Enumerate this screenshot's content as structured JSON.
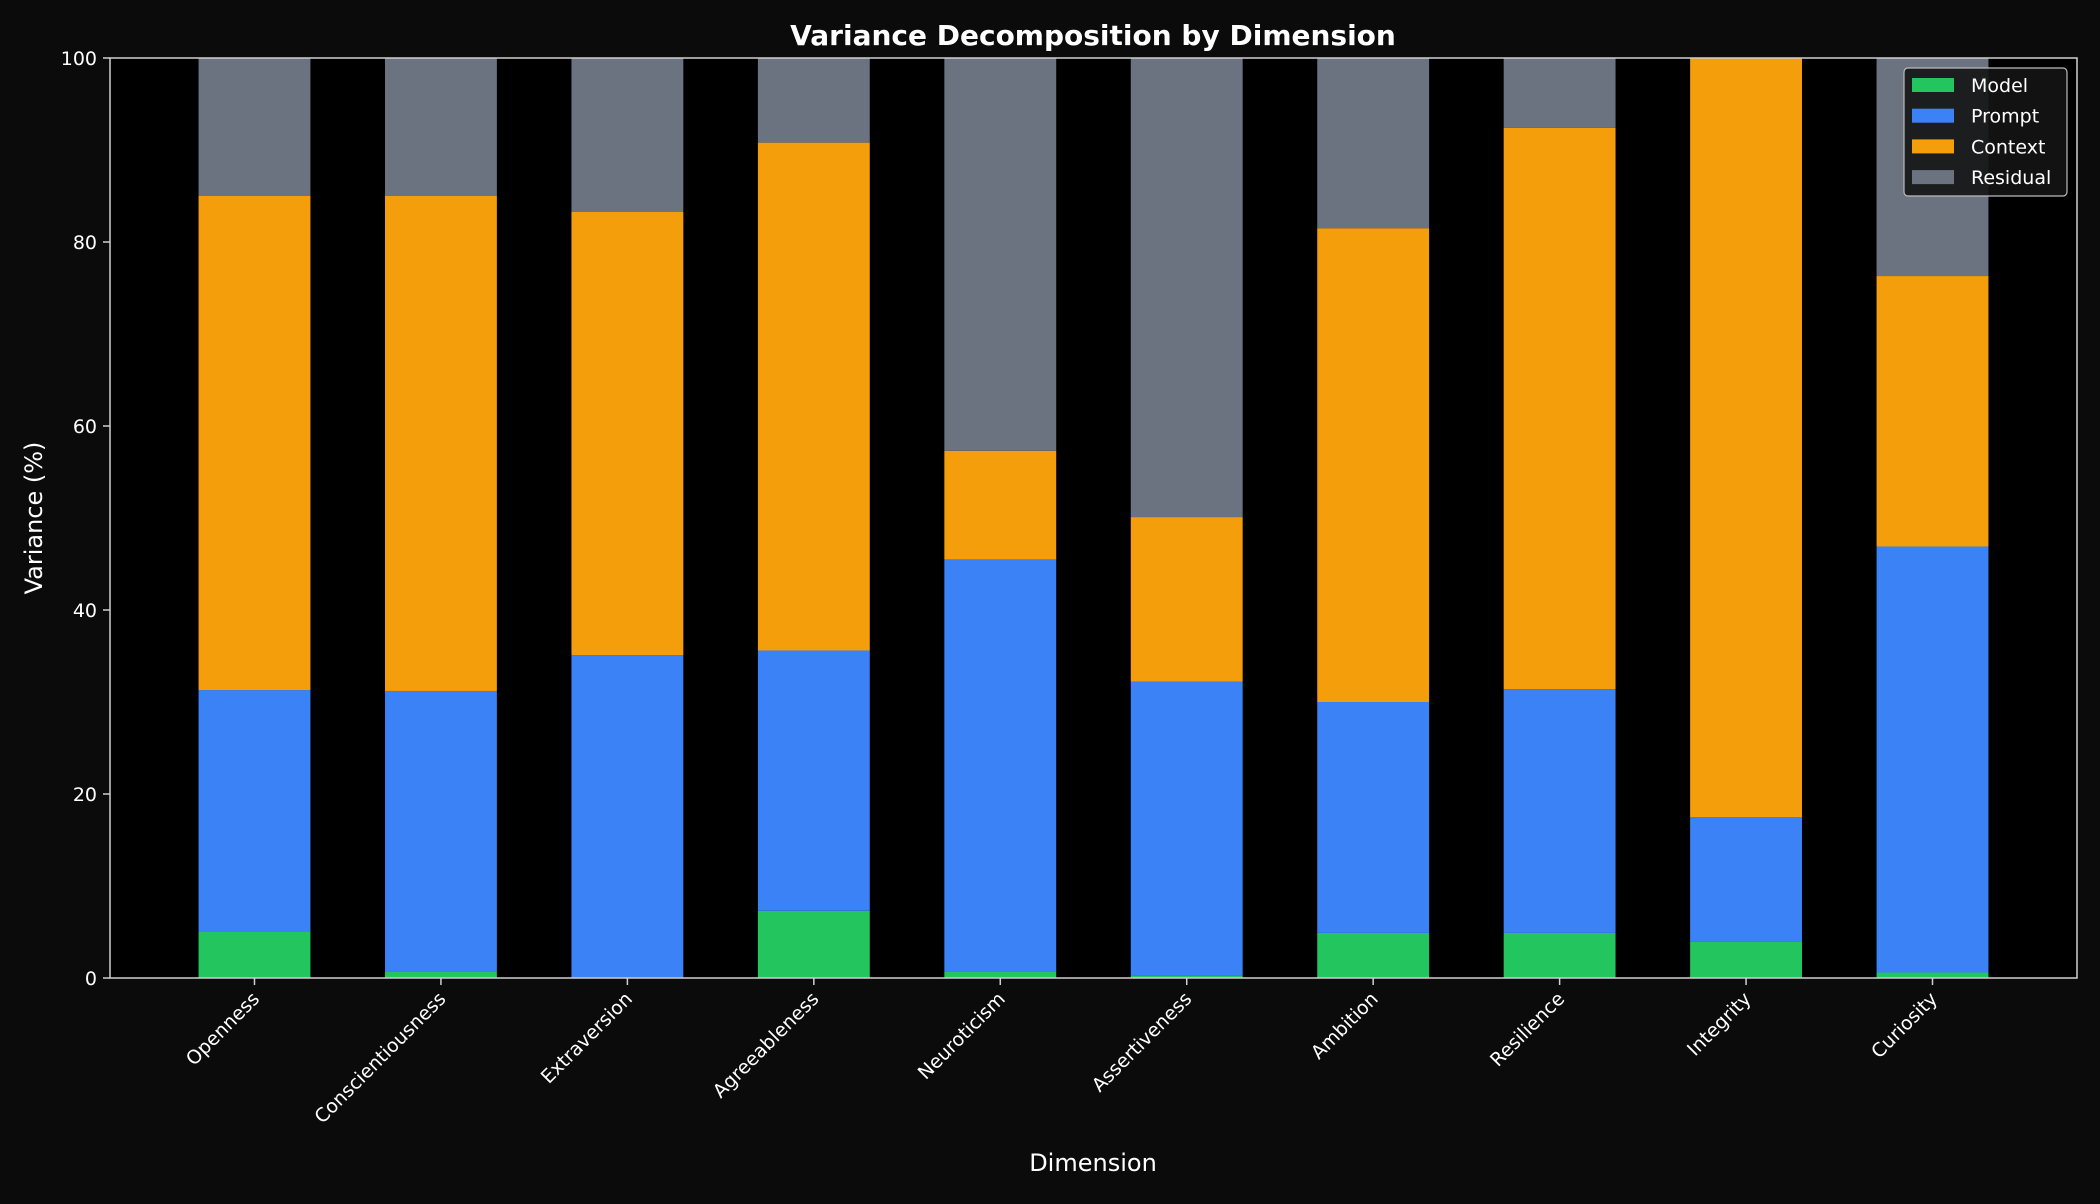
{
  "chart_data": {
    "type": "bar",
    "stacked": true,
    "title": "Variance Decomposition by Dimension",
    "xlabel": "Dimension",
    "ylabel": "Variance (%)",
    "ylim": [
      0,
      100
    ],
    "yticks": [
      0,
      20,
      40,
      60,
      80,
      100
    ],
    "grid": false,
    "legend_position": "top-right",
    "categories": [
      "Openness",
      "Conscientiousness",
      "Extraversion",
      "Agreeableness",
      "Neuroticism",
      "Assertiveness",
      "Ambition",
      "Resilience",
      "Integrity",
      "Curiosity"
    ],
    "series": [
      {
        "name": "Model",
        "color": "#22c55e",
        "values": [
          5.0,
          0.7,
          0.0,
          7.3,
          0.7,
          0.3,
          4.9,
          4.9,
          4.0,
          0.6
        ]
      },
      {
        "name": "Prompt",
        "color": "#3b82f6",
        "values": [
          26.3,
          30.5,
          35.1,
          28.3,
          44.8,
          31.9,
          25.1,
          26.5,
          13.5,
          46.3
        ]
      },
      {
        "name": "Context",
        "color": "#f59e0b",
        "values": [
          53.7,
          53.8,
          48.2,
          55.2,
          11.8,
          17.9,
          51.5,
          61.0,
          82.5,
          29.4
        ]
      },
      {
        "name": "Residual",
        "color": "#6b7280",
        "values": [
          15.0,
          15.0,
          16.7,
          9.2,
          42.7,
          49.9,
          18.5,
          7.6,
          0.0,
          23.7
        ]
      }
    ]
  }
}
